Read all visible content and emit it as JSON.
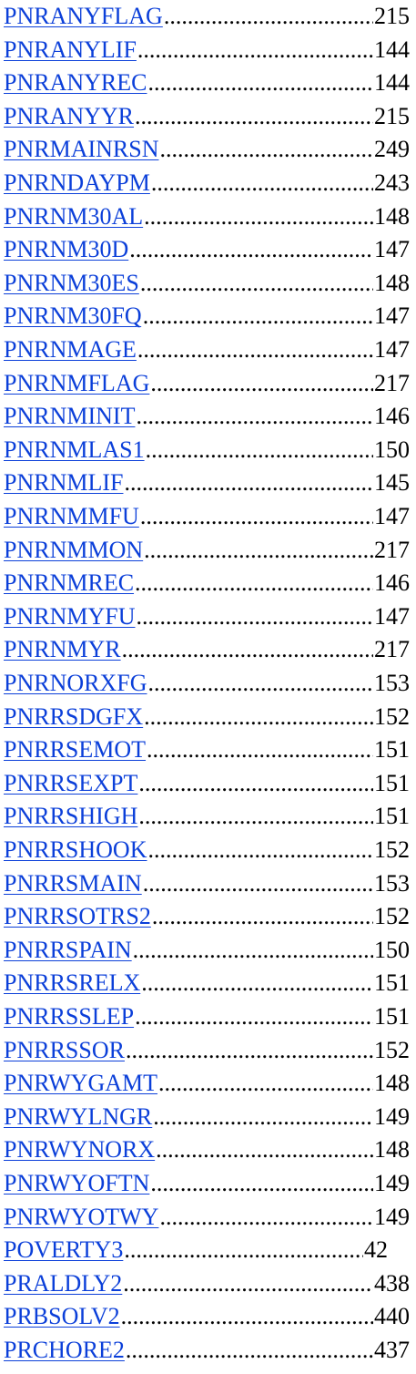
{
  "index": {
    "entries": [
      {
        "term": "PNRANYFLAG",
        "page": "215"
      },
      {
        "term": "PNRANYLIF",
        "page": "144"
      },
      {
        "term": "PNRANYREC",
        "page": "144"
      },
      {
        "term": "PNRANYYR",
        "page": "215"
      },
      {
        "term": "PNRMAINRSN",
        "page": "249"
      },
      {
        "term": "PNRNDAYPM",
        "page": "243"
      },
      {
        "term": "PNRNM30AL",
        "page": "148"
      },
      {
        "term": "PNRNM30D",
        "page": "147"
      },
      {
        "term": "PNRNM30ES",
        "page": "148"
      },
      {
        "term": "PNRNM30FQ",
        "page": "147"
      },
      {
        "term": "PNRNMAGE",
        "page": "147"
      },
      {
        "term": "PNRNMFLAG",
        "page": "217"
      },
      {
        "term": "PNRNMINIT",
        "page": "146"
      },
      {
        "term": "PNRNMLAS1",
        "page": "150"
      },
      {
        "term": "PNRNMLIF",
        "page": "145"
      },
      {
        "term": "PNRNMMFU",
        "page": "147"
      },
      {
        "term": "PNRNMMON",
        "page": "217"
      },
      {
        "term": "PNRNMREC",
        "page": "146"
      },
      {
        "term": "PNRNMYFU",
        "page": "147"
      },
      {
        "term": "PNRNMYR",
        "page": "217"
      },
      {
        "term": "PNRNORXFG",
        "page": "153"
      },
      {
        "term": "PNRRSDGFX",
        "page": "152"
      },
      {
        "term": "PNRRSEMOT",
        "page": "151"
      },
      {
        "term": "PNRRSEXPT",
        "page": "151"
      },
      {
        "term": "PNRRSHIGH",
        "page": "151"
      },
      {
        "term": "PNRRSHOOK",
        "page": "152"
      },
      {
        "term": "PNRRSMAIN",
        "page": "153"
      },
      {
        "term": "PNRRSOTRS2",
        "page": "152"
      },
      {
        "term": "PNRRSPAIN",
        "page": "150"
      },
      {
        "term": "PNRRSRELX",
        "page": "151"
      },
      {
        "term": "PNRRSSLEP",
        "page": "151"
      },
      {
        "term": "PNRRSSOR",
        "page": "152"
      },
      {
        "term": "PNRWYGAMT",
        "page": "148"
      },
      {
        "term": "PNRWYLNGR",
        "page": "149"
      },
      {
        "term": "PNRWYNORX",
        "page": "148"
      },
      {
        "term": "PNRWYOFTN",
        "page": "149"
      },
      {
        "term": "PNRWYOTWY",
        "page": "149"
      },
      {
        "term": "POVERTY3",
        "page": "42"
      },
      {
        "term": "PRALDLY2",
        "page": "438"
      },
      {
        "term": "PRBSOLV2",
        "page": "440"
      },
      {
        "term": "PRCHORE2",
        "page": "437"
      }
    ]
  }
}
